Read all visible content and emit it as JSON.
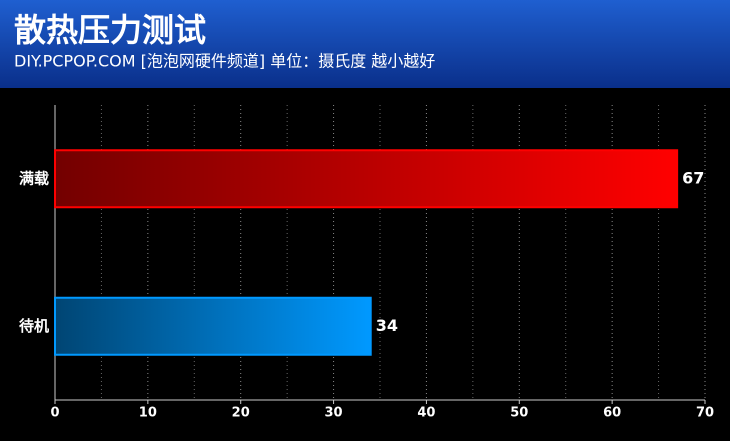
{
  "chart_data": {
    "type": "hbar",
    "title": "散热压力测试",
    "subtitle": "DIY.PCPOP.COM [泡泡网硬件频道] 单位：摄氏度  越小越好",
    "categories": [
      "满载",
      "待机"
    ],
    "values": [
      67,
      34
    ],
    "colors": [
      "#ff0000",
      "#0099ff"
    ],
    "xlim": [
      0,
      70
    ],
    "xticks": [
      0,
      10,
      20,
      30,
      40,
      50,
      60,
      70
    ],
    "minor_xticks": [
      5,
      15,
      25,
      35,
      45,
      55,
      65
    ],
    "grid": true
  }
}
